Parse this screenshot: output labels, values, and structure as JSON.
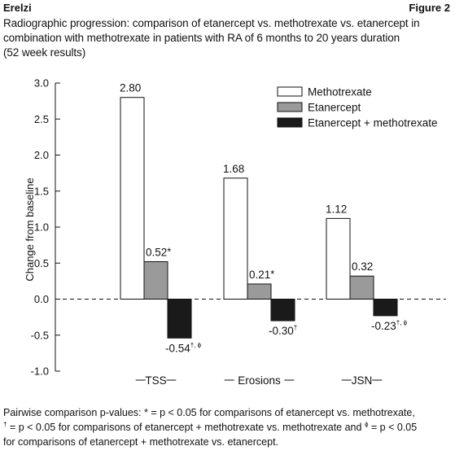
{
  "header": {
    "left": "Erelzi",
    "right": "Figure 2"
  },
  "title_lines": [
    "Radiographic progression: comparison of etanercept vs. methotrexate vs. etanercept in",
    "combination with methotrexate in patients with RA of 6 months to 20 years duration",
    "(52 week results)"
  ],
  "chart_data": {
    "type": "bar",
    "ylabel": "Change from baseline",
    "ylim": [
      -1.0,
      3.0
    ],
    "yticks": [
      "3.0",
      "2.5",
      "2.0",
      "1.5",
      "1.0",
      "0.5",
      "0.0",
      "-0.5",
      "-1.0"
    ],
    "categories": [
      "TSS",
      "Erosions",
      "JSN"
    ],
    "series": [
      {
        "name": "Methotrexate",
        "color": "#ffffff",
        "values": [
          2.8,
          1.68,
          1.12
        ],
        "labels": [
          "2.80",
          "1.68",
          "1.12"
        ],
        "marks": [
          "",
          "",
          ""
        ]
      },
      {
        "name": "Etanercept",
        "color": "#9a9a9a",
        "values": [
          0.52,
          0.21,
          0.32
        ],
        "labels": [
          "0.52",
          "0.21",
          "0.32"
        ],
        "marks": [
          "*",
          "*",
          ""
        ]
      },
      {
        "name": "Etanercept + methotrexate",
        "color": "#1a1a1a",
        "values": [
          -0.54,
          -0.3,
          -0.23
        ],
        "labels": [
          "-0.54",
          "-0.30",
          "-0.23"
        ],
        "marks": [
          "†, ϕ",
          "†",
          "†, ϕ"
        ]
      }
    ],
    "legend_position": "top-right",
    "zero_line": "dashed"
  },
  "footnote": {
    "line1": "Pairwise comparison p-values: * = p < 0.05 for comparisons of etanercept vs. methotrexate,",
    "line2_sym1": "†",
    "line2": " = p < 0.05 for comparisons of etanercept + methotrexate vs. methotrexate and ",
    "line2_sym2": "ϕ",
    "line2_end": " = p < 0.05",
    "line3": "for comparisons of etanercept + methotrexate vs. etanercept."
  }
}
